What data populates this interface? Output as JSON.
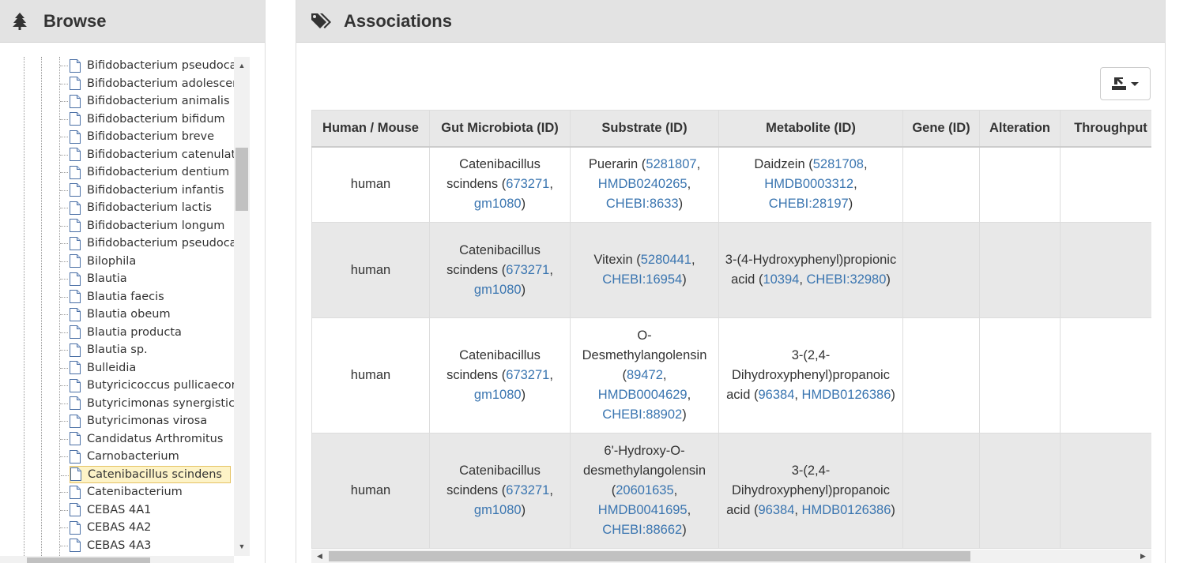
{
  "browse": {
    "title": "Browse",
    "icon": "tree-icon",
    "items": [
      "Bifidobacterium pseudocatenulatum",
      "Bifidobacterium adolescentis",
      "Bifidobacterium animalis",
      "Bifidobacterium bifidum",
      "Bifidobacterium breve",
      "Bifidobacterium catenulatum",
      "Bifidobacterium dentium",
      "Bifidobacterium infantis",
      "Bifidobacterium lactis",
      "Bifidobacterium longum",
      "Bifidobacterium pseudocatenulatum",
      "Bilophila",
      "Blautia",
      "Blautia faecis",
      "Blautia obeum",
      "Blautia producta",
      "Blautia sp.",
      "Bulleidia",
      "Butyricicoccus pullicaecorum",
      "Butyricimonas synergistica",
      "Butyricimonas virosa",
      "Candidatus Arthromitus",
      "Carnobacterium",
      "Catenibacillus scindens",
      "Catenibacterium",
      "CEBAS 4A1",
      "CEBAS 4A2",
      "CEBAS 4A3"
    ],
    "selected_item": "Catenibacillus scindens"
  },
  "associations": {
    "title": "Associations",
    "icon": "tags-icon",
    "export_icon": "export-icon",
    "columns": [
      "Human / Mouse",
      "Gut Microbiota (ID)",
      "Substrate (ID)",
      "Metabolite (ID)",
      "Gene (ID)",
      "Alteration",
      "Throughput"
    ],
    "rows": [
      {
        "host": "human",
        "microbiota": "Catenibacillus scindens",
        "microbiota_ids": [
          "673271",
          "gm1080"
        ],
        "substrate": "Puerarin",
        "substrate_ids": [
          "5281807",
          "HMDB0240265",
          "CHEBI:8633"
        ],
        "metabolite": "Daidzein",
        "metabolite_ids": [
          "5281708",
          "HMDB0003312",
          "CHEBI:28197"
        ],
        "gene": "",
        "alteration": "",
        "throughput": ""
      },
      {
        "host": "human",
        "microbiota": "Catenibacillus scindens",
        "microbiota_ids": [
          "673271",
          "gm1080"
        ],
        "substrate": "Vitexin",
        "substrate_ids": [
          "5280441",
          "CHEBI:16954"
        ],
        "metabolite": "3-(4-Hydroxyphenyl)propionic acid",
        "metabolite_ids": [
          "10394",
          "CHEBI:32980"
        ],
        "gene": "",
        "alteration": "",
        "throughput": ""
      },
      {
        "host": "human",
        "microbiota": "Catenibacillus scindens",
        "microbiota_ids": [
          "673271",
          "gm1080"
        ],
        "substrate": "O-Desmethylangolensin",
        "substrate_ids": [
          "89472",
          "HMDB0004629",
          "CHEBI:88902"
        ],
        "metabolite": "3-(2,4-Dihydroxyphenyl)propanoic acid",
        "metabolite_ids": [
          "96384",
          "HMDB0126386"
        ],
        "gene": "",
        "alteration": "",
        "throughput": ""
      },
      {
        "host": "human",
        "microbiota": "Catenibacillus scindens",
        "microbiota_ids": [
          "673271",
          "gm1080"
        ],
        "substrate": "6'-Hydroxy-O-desmethylangolensin",
        "substrate_ids": [
          "20601635",
          "HMDB0041695",
          "CHEBI:88662"
        ],
        "metabolite": "3-(2,4-Dihydroxyphenyl)propanoic acid",
        "metabolite_ids": [
          "96384",
          "HMDB0126386"
        ],
        "gene": "",
        "alteration": "",
        "throughput": ""
      }
    ]
  },
  "colors": {
    "link": "#3a75b0",
    "header_bg": "#e3e3e3",
    "stripe": "#e8e8e8",
    "selected_bg": "#fdf3c7"
  }
}
